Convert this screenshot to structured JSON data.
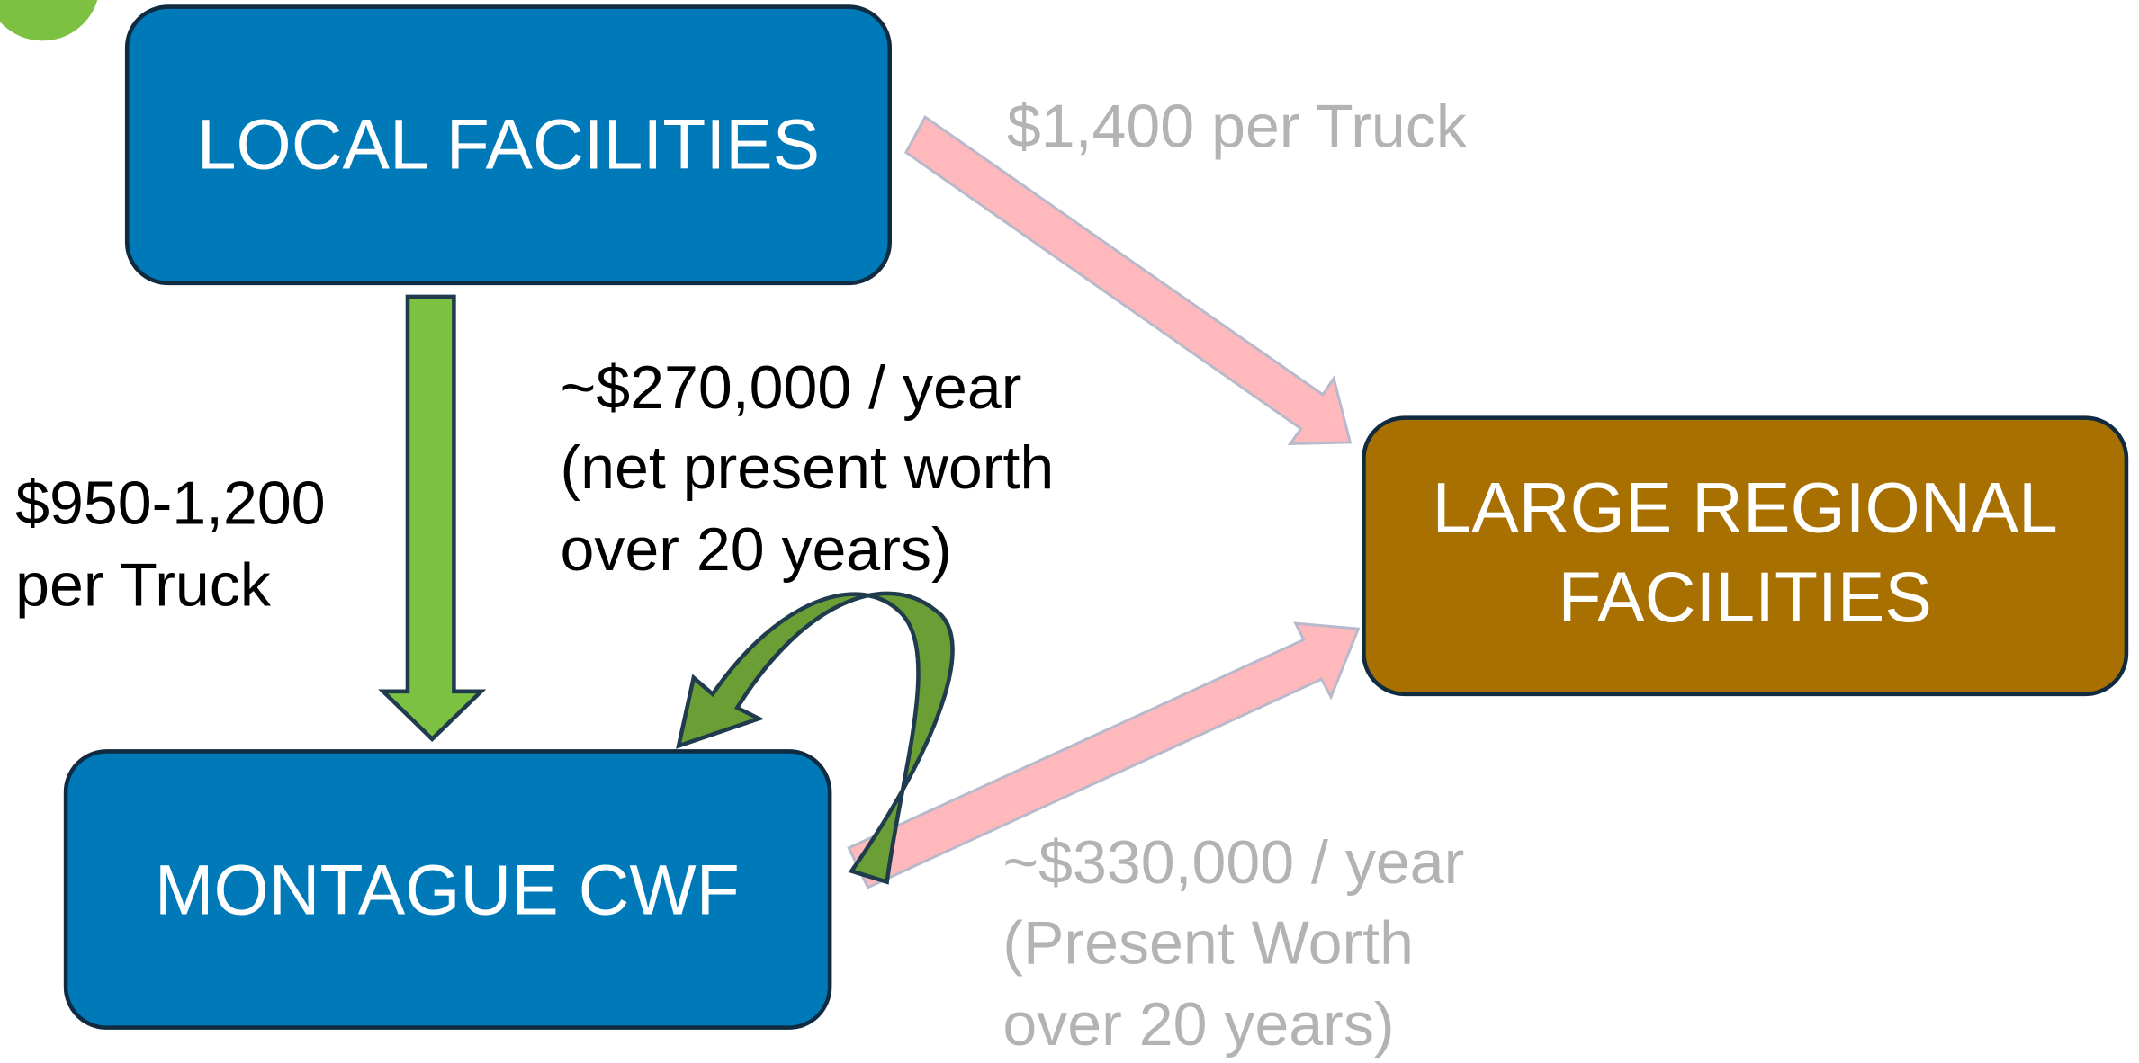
{
  "nodes": [
    {
      "lines": [
        "LOCAL FACILITIES"
      ]
    },
    {
      "lines": [
        "LARGE REGIONAL",
        "FACILITIES"
      ]
    },
    {
      "lines": [
        "MONTAGUE CWF"
      ]
    }
  ],
  "edges": [
    {
      "lines": [
        "$1,400 per Truck"
      ]
    },
    {
      "lines": [
        "$950-1,200",
        "per Truck"
      ]
    },
    {
      "lines": [
        "~$270,000 / year",
        "(net present worth",
        "over 20 years)"
      ]
    },
    {
      "lines": [
        "~$330,000 / year",
        "(Present Worth",
        "over 20 years)"
      ]
    }
  ]
}
